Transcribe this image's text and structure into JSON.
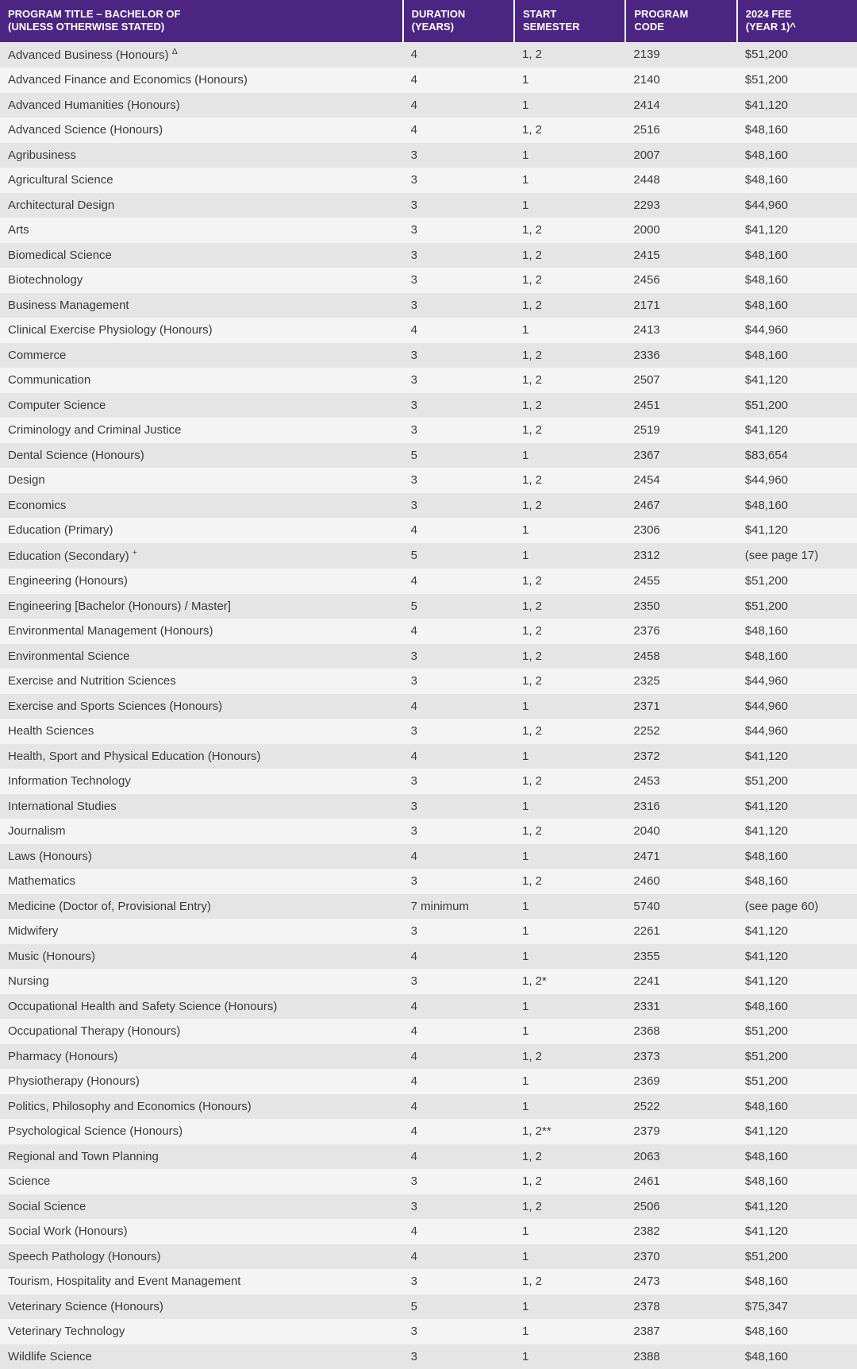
{
  "table": {
    "header_bg": "#4c2582",
    "header_fg": "#ffffff",
    "row_odd_bg": "#e6e5e5",
    "row_even_bg": "#f5f4f4",
    "text_color": "#3a3a3a",
    "columns": [
      {
        "key": "title",
        "label": "PROGRAM TITLE – BACHELOR OF\n(UNLESS OTHERWISE STATED)"
      },
      {
        "key": "duration",
        "label": "DURATION\n(YEARS)"
      },
      {
        "key": "start",
        "label": "START\nSEMESTER"
      },
      {
        "key": "code",
        "label": "PROGRAM\nCODE"
      },
      {
        "key": "fee",
        "label": "2024 FEE\n(YEAR 1)^"
      }
    ],
    "rows": [
      {
        "title": "Advanced Business (Honours) ",
        "title_sup": "Δ",
        "duration": "4",
        "start": "1, 2",
        "code": "2139",
        "fee": "$51,200"
      },
      {
        "title": "Advanced Finance and Economics (Honours)",
        "duration": "4",
        "start": "1",
        "code": "2140",
        "fee": "$51,200"
      },
      {
        "title": "Advanced Humanities (Honours)",
        "duration": "4",
        "start": "1",
        "code": "2414",
        "fee": "$41,120"
      },
      {
        "title": "Advanced Science (Honours)",
        "duration": "4",
        "start": "1, 2",
        "code": "2516",
        "fee": "$48,160"
      },
      {
        "title": "Agribusiness",
        "duration": "3",
        "start": "1",
        "code": "2007",
        "fee": "$48,160"
      },
      {
        "title": "Agricultural Science",
        "duration": "3",
        "start": "1",
        "code": "2448",
        "fee": "$48,160"
      },
      {
        "title": "Architectural Design",
        "duration": "3",
        "start": "1",
        "code": "2293",
        "fee": "$44,960"
      },
      {
        "title": "Arts",
        "duration": "3",
        "start": "1, 2",
        "code": "2000",
        "fee": "$41,120"
      },
      {
        "title": "Biomedical Science",
        "duration": "3",
        "start": "1, 2",
        "code": "2415",
        "fee": "$48,160"
      },
      {
        "title": "Biotechnology",
        "duration": "3",
        "start": "1, 2",
        "code": "2456",
        "fee": "$48,160"
      },
      {
        "title": "Business Management",
        "duration": "3",
        "start": "1, 2",
        "code": "2171",
        "fee": "$48,160"
      },
      {
        "title": "Clinical Exercise Physiology (Honours)",
        "duration": "4",
        "start": "1",
        "code": "2413",
        "fee": "$44,960"
      },
      {
        "title": "Commerce",
        "duration": "3",
        "start": "1, 2",
        "code": "2336",
        "fee": "$48,160"
      },
      {
        "title": "Communication",
        "duration": "3",
        "start": "1, 2",
        "code": "2507",
        "fee": "$41,120"
      },
      {
        "title": "Computer Science",
        "duration": "3",
        "start": "1, 2",
        "code": "2451",
        "fee": "$51,200"
      },
      {
        "title": "Criminology and Criminal Justice",
        "duration": "3",
        "start": "1, 2",
        "code": "2519",
        "fee": "$41,120"
      },
      {
        "title": "Dental Science (Honours)",
        "duration": "5",
        "start": "1",
        "code": "2367",
        "fee": "$83,654"
      },
      {
        "title": "Design",
        "duration": "3",
        "start": "1, 2",
        "code": "2454",
        "fee": "$44,960"
      },
      {
        "title": "Economics",
        "duration": "3",
        "start": "1, 2",
        "code": "2467",
        "fee": "$48,160"
      },
      {
        "title": "Education (Primary)",
        "duration": "4",
        "start": "1",
        "code": "2306",
        "fee": "$41,120"
      },
      {
        "title": "Education (Secondary) ",
        "title_sup": "+",
        "duration": "5",
        "start": "1",
        "code": "2312",
        "fee": "(see page 17)"
      },
      {
        "title": "Engineering (Honours)",
        "duration": "4",
        "start": "1, 2",
        "code": "2455",
        "fee": "$51,200"
      },
      {
        "title": "Engineering [Bachelor (Honours) / Master]",
        "duration": "5",
        "start": "1, 2",
        "code": "2350",
        "fee": "$51,200"
      },
      {
        "title": "Environmental Management (Honours)",
        "duration": "4",
        "start": "1, 2",
        "code": "2376",
        "fee": "$48,160"
      },
      {
        "title": "Environmental Science",
        "duration": "3",
        "start": "1, 2",
        "code": "2458",
        "fee": "$48,160"
      },
      {
        "title": "Exercise and Nutrition Sciences",
        "duration": "3",
        "start": "1, 2",
        "code": "2325",
        "fee": "$44,960"
      },
      {
        "title": "Exercise and Sports Sciences (Honours)",
        "duration": "4",
        "start": "1",
        "code": "2371",
        "fee": "$44,960"
      },
      {
        "title": "Health Sciences",
        "duration": "3",
        "start": "1, 2",
        "code": "2252",
        "fee": "$44,960"
      },
      {
        "title": "Health, Sport and Physical Education (Honours)",
        "duration": "4",
        "start": "1",
        "code": "2372",
        "fee": "$41,120"
      },
      {
        "title": "Information Technology",
        "duration": "3",
        "start": "1, 2",
        "code": "2453",
        "fee": "$51,200"
      },
      {
        "title": "International Studies",
        "duration": "3",
        "start": "1",
        "code": "2316",
        "fee": "$41,120"
      },
      {
        "title": "Journalism",
        "duration": "3",
        "start": "1, 2",
        "code": "2040",
        "fee": "$41,120"
      },
      {
        "title": "Laws (Honours)",
        "duration": "4",
        "start": "1",
        "code": "2471",
        "fee": "$48,160"
      },
      {
        "title": "Mathematics",
        "duration": "3",
        "start": "1, 2",
        "code": "2460",
        "fee": "$48,160"
      },
      {
        "title": "Medicine (Doctor of, Provisional Entry)",
        "duration": "7 minimum",
        "start": "1",
        "code": "5740",
        "fee": "(see page 60)"
      },
      {
        "title": "Midwifery",
        "duration": "3",
        "start": "1",
        "code": "2261",
        "fee": "$41,120"
      },
      {
        "title": "Music (Honours)",
        "duration": "4",
        "start": "1",
        "code": "2355",
        "fee": "$41,120"
      },
      {
        "title": "Nursing",
        "duration": "3",
        "start": "1, 2*",
        "code": "2241",
        "fee": "$41,120"
      },
      {
        "title": "Occupational Health and Safety Science (Honours)",
        "duration": "4",
        "start": "1",
        "code": "2331",
        "fee": "$48,160"
      },
      {
        "title": "Occupational Therapy (Honours)",
        "duration": "4",
        "start": "1",
        "code": "2368",
        "fee": "$51,200"
      },
      {
        "title": "Pharmacy (Honours)",
        "duration": "4",
        "start": "1, 2",
        "code": "2373",
        "fee": "$51,200"
      },
      {
        "title": "Physiotherapy (Honours)",
        "duration": "4",
        "start": "1",
        "code": "2369",
        "fee": "$51,200"
      },
      {
        "title": "Politics, Philosophy and Economics (Honours)",
        "duration": "4",
        "start": "1",
        "code": "2522",
        "fee": "$48,160"
      },
      {
        "title": "Psychological Science (Honours)",
        "duration": "4",
        "start": "1, 2**",
        "code": "2379",
        "fee": "$41,120"
      },
      {
        "title": "Regional and Town Planning",
        "duration": "4",
        "start": "1, 2",
        "code": "2063",
        "fee": "$48,160"
      },
      {
        "title": "Science",
        "duration": "3",
        "start": "1, 2",
        "code": "2461",
        "fee": "$48,160"
      },
      {
        "title": "Social Science",
        "duration": "3",
        "start": "1, 2",
        "code": "2506",
        "fee": "$41,120"
      },
      {
        "title": "Social Work (Honours)",
        "duration": "4",
        "start": "1",
        "code": "2382",
        "fee": "$41,120"
      },
      {
        "title": "Speech Pathology (Honours)",
        "duration": "4",
        "start": "1",
        "code": "2370",
        "fee": "$51,200"
      },
      {
        "title": "Tourism, Hospitality and Event Management",
        "duration": "3",
        "start": "1, 2",
        "code": "2473",
        "fee": "$48,160"
      },
      {
        "title": "Veterinary Science (Honours)",
        "duration": "5",
        "start": "1",
        "code": "2378",
        "fee": "$75,347"
      },
      {
        "title": "Veterinary Technology",
        "duration": "3",
        "start": "1",
        "code": "2387",
        "fee": "$48,160"
      },
      {
        "title": "Wildlife Science",
        "duration": "3",
        "start": "1",
        "code": "2388",
        "fee": "$48,160"
      }
    ]
  }
}
